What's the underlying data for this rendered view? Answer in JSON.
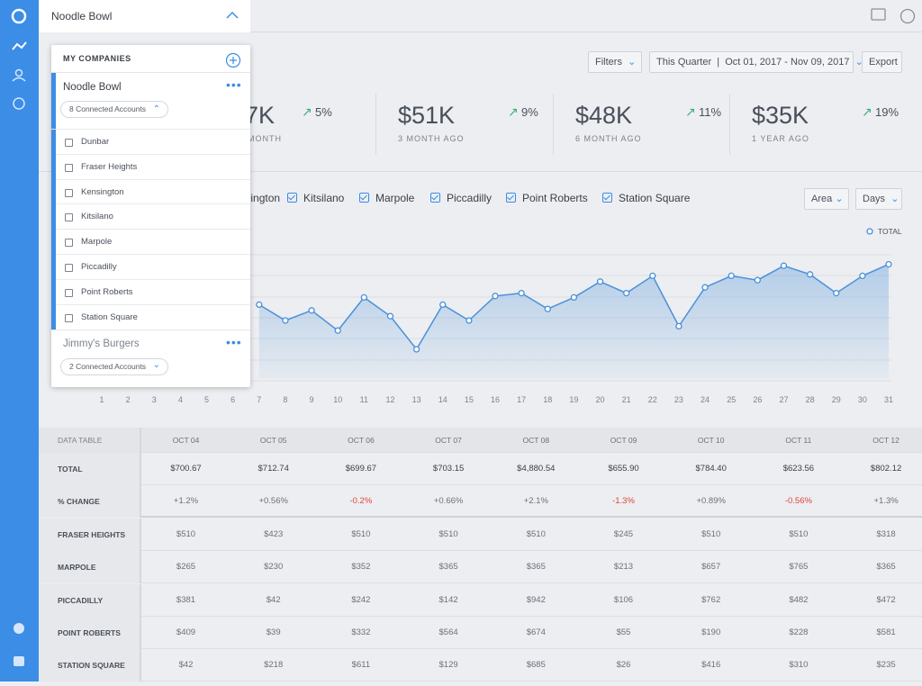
{
  "topbar": {
    "company": "Noodle Bowl"
  },
  "toolbar": {
    "filters": "Filters",
    "range_label": "This Quarter",
    "range": "Oct 01, 2017 - Nov 09, 2017",
    "export": "Export"
  },
  "stats": [
    {
      "value": "7K",
      "change": "5%",
      "label": "MONTH"
    },
    {
      "value": "$51K",
      "change": "9%",
      "label": "3 MONTH AGO"
    },
    {
      "value": "$48K",
      "change": "11%",
      "label": "6 MONTH AGO"
    },
    {
      "value": "$35K",
      "change": "19%",
      "label": "1 YEAR AGO"
    }
  ],
  "legend": [
    "Kensington",
    "Kitsilano",
    "Marpole",
    "Piccadilly",
    "Point Roberts",
    "Station Square"
  ],
  "chart_controls": {
    "type": "Area",
    "interval": "Days"
  },
  "chart_data": {
    "type": "area",
    "x": [
      1,
      2,
      3,
      4,
      5,
      6,
      7,
      8,
      9,
      10,
      11,
      12,
      13,
      14,
      15,
      16,
      17,
      18,
      19,
      20,
      21,
      22,
      23,
      24,
      25,
      26,
      27,
      28,
      29,
      30,
      31
    ],
    "series": [
      {
        "name": "TOTAL",
        "color": "#4a90d9",
        "values": [
          null,
          null,
          null,
          null,
          null,
          null,
          51,
          40,
          47,
          33,
          56,
          43,
          20,
          51,
          40,
          57,
          59,
          48,
          56,
          67,
          59,
          71,
          36,
          63,
          71,
          68,
          78,
          72,
          59,
          71,
          79
        ]
      }
    ],
    "ylim": [
      0,
      100
    ]
  },
  "table": {
    "header": [
      "DATA TABLE",
      "OCT 04",
      "OCT 05",
      "OCT 06",
      "OCT 07",
      "OCT 08",
      "OCT 09",
      "OCT 10",
      "OCT 11",
      "OCT 12"
    ],
    "rows": [
      [
        "TOTAL",
        "$700.67",
        "$712.74",
        "$699.67",
        "$703.15",
        "$4,880.54",
        "$655.90",
        "$784.40",
        "$623.56",
        "$802.12"
      ],
      [
        "% CHANGE",
        "+1.2%",
        "+0.56%",
        "-0.2%",
        "+0.66%",
        "+2.1%",
        "-1.3%",
        "+0.89%",
        "-0.56%",
        "+1.3%"
      ],
      [
        "FRASER HEIGHTS",
        "$510",
        "$423",
        "$510",
        "$510",
        "$510",
        "$245",
        "$510",
        "$510",
        "$318"
      ],
      [
        "MARPOLE",
        "$265",
        "$230",
        "$352",
        "$365",
        "$365",
        "$213",
        "$657",
        "$765",
        "$365"
      ],
      [
        "PICCADILLY",
        "$381",
        "$42",
        "$242",
        "$142",
        "$942",
        "$106",
        "$762",
        "$482",
        "$472"
      ],
      [
        "POINT ROBERTS",
        "$409",
        "$39",
        "$332",
        "$564",
        "$674",
        "$55",
        "$190",
        "$228",
        "$581"
      ],
      [
        "STATION SQUARE",
        "$42",
        "$218",
        "$611",
        "$129",
        "$685",
        "$26",
        "$416",
        "$310",
        "$235"
      ]
    ]
  },
  "panel": {
    "title": "MY COMPANIES",
    "companies": [
      {
        "name": "Noodle Bowl",
        "accounts_label": "8 Connected Accounts",
        "accounts": [
          "Dunbar",
          "Fraser Heights",
          "Kensington",
          "Kitsilano",
          "Marpole",
          "Piccadilly",
          "Point Roberts",
          "Station Square"
        ]
      },
      {
        "name": "Jimmy's Burgers",
        "accounts_label": "2 Connected Accounts"
      }
    ]
  }
}
